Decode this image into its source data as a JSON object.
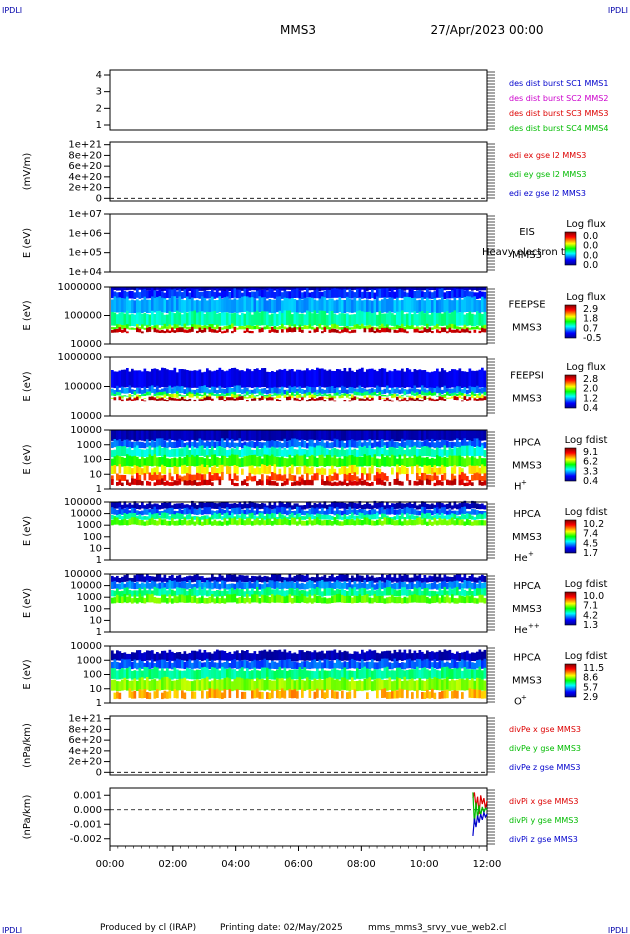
{
  "header": {
    "corner_tl": "IPDLI",
    "corner_tr": "IPDLI",
    "corner_bl": "IPDLI",
    "corner_br": "IPDLI",
    "title": "MMS3",
    "datetime": "27/Apr/2023 00:00"
  },
  "footer": {
    "produced_by": "Produced by cl (IRAP)",
    "printing_date": "Printing date: 02/May/2025",
    "script_name": "mms_mms3_srvy_vue_web2.cl"
  },
  "colors": {
    "mms1": "#0000cc",
    "mms2": "#cc00cc",
    "mms3": "#dd0000",
    "mms4": "#00bb00",
    "x": "#dd0000",
    "y": "#00bb00",
    "z": "#0000cc"
  },
  "chart_data": [
    {
      "id": "des-burst",
      "type": "line",
      "yticks": [
        "1",
        "2",
        "3",
        "4"
      ],
      "ylim": [
        0.7,
        4.3
      ],
      "ylabel": "",
      "legend": [
        {
          "text": "des dist burst SC1 MMS1",
          "color": "#0000cc"
        },
        {
          "text": "des dist burst SC2 MMS2",
          "color": "#cc00cc"
        },
        {
          "text": "des dist burst SC3 MMS3",
          "color": "#dd0000"
        },
        {
          "text": "des dist burst SC4 MMS4",
          "color": "#00bb00"
        }
      ],
      "series": []
    },
    {
      "id": "edi-e",
      "type": "line",
      "ylabel": "(mV/m)",
      "yticks": [
        "0",
        "2e+20",
        "4e+20",
        "6e+20",
        "8e+20",
        "1e+21"
      ],
      "ylim": [
        -0.05,
        1.05
      ],
      "zero_line": true,
      "legend": [
        {
          "text": "edi ex gse l2 MMS3",
          "color": "#dd0000"
        },
        {
          "text": "edi ey gse l2 MMS3",
          "color": "#00bb00"
        },
        {
          "text": "edi ez gse l2 MMS3",
          "color": "#0000cc"
        }
      ],
      "series": []
    },
    {
      "id": "eis",
      "type": "heatmap",
      "ylabel": "E (eV)",
      "yticks": [
        "1e+04",
        "1e+05",
        "1e+06",
        "1e+07"
      ],
      "instrument": [
        "EIS",
        "MMS3"
      ],
      "overlay_label": "Heavy electron to",
      "colorbar": {
        "title": "Log flux",
        "ticks": [
          "0.0",
          "0.0",
          "0.0",
          "0.0"
        ]
      },
      "bands": []
    },
    {
      "id": "feepse",
      "type": "heatmap",
      "ylabel": "E (eV)",
      "yticks": [
        "10000",
        "100000",
        "1000000"
      ],
      "instrument": [
        "FEEPSE",
        "MMS3"
      ],
      "colorbar": {
        "title": "Log flux",
        "ticks": [
          "2.9",
          "1.8",
          "0.7",
          "-0.5"
        ]
      },
      "bands": [
        {
          "from": 0.0,
          "to": 0.06,
          "level": 0.05
        },
        {
          "from": 0.06,
          "to": 0.2,
          "level": 0.18
        },
        {
          "from": 0.2,
          "to": 0.45,
          "level": 0.28
        },
        {
          "from": 0.45,
          "to": 0.68,
          "level": 0.4
        },
        {
          "from": 0.68,
          "to": 0.74,
          "level": 0.55
        },
        {
          "from": 0.74,
          "to": 0.8,
          "level": 0.92
        }
      ]
    },
    {
      "id": "feepsi",
      "type": "heatmap",
      "ylabel": "E (eV)",
      "yticks": [
        "10000",
        "100000",
        "1000000"
      ],
      "instrument": [
        "FEEPSI",
        "MMS3"
      ],
      "colorbar": {
        "title": "Log flux",
        "ticks": [
          "2.8",
          "2.0",
          "1.2",
          "0.4"
        ]
      },
      "bands": [
        {
          "from": 0.0,
          "to": 0.22,
          "level": -1
        },
        {
          "from": 0.22,
          "to": 0.52,
          "level": 0.12
        },
        {
          "from": 0.52,
          "to": 0.62,
          "level": 0.25
        },
        {
          "from": 0.62,
          "to": 0.66,
          "level": 0.45
        },
        {
          "from": 0.66,
          "to": 0.7,
          "level": 0.62
        },
        {
          "from": 0.7,
          "to": 0.74,
          "level": 0.95
        }
      ]
    },
    {
      "id": "hpca-h",
      "type": "heatmap",
      "ylabel": "E (eV)",
      "yticks": [
        "1",
        "10",
        "100",
        "1000",
        "10000"
      ],
      "instrument": [
        "HPCA",
        "MMS3"
      ],
      "species": "H",
      "species_sup": "+",
      "colorbar": {
        "title": "Log fdist",
        "ticks": [
          "9.1",
          "6.2",
          "3.3",
          "0.4"
        ]
      },
      "bands": [
        {
          "from": 0.0,
          "to": 0.18,
          "level": 0.05
        },
        {
          "from": 0.18,
          "to": 0.3,
          "level": 0.22
        },
        {
          "from": 0.3,
          "to": 0.45,
          "level": 0.38
        },
        {
          "from": 0.45,
          "to": 0.62,
          "level": 0.52
        },
        {
          "from": 0.62,
          "to": 0.75,
          "level": 0.66
        },
        {
          "from": 0.75,
          "to": 0.86,
          "level": 0.8
        },
        {
          "from": 0.86,
          "to": 0.94,
          "level": 0.92
        },
        {
          "from": 0.94,
          "to": 1.0,
          "level": -1
        }
      ]
    },
    {
      "id": "hpca-he",
      "type": "heatmap",
      "ylabel": "E (eV)",
      "yticks": [
        "1",
        "10",
        "100",
        "1000",
        "10000",
        "100000"
      ],
      "instrument": [
        "HPCA",
        "MMS3"
      ],
      "species": "He",
      "species_sup": "+",
      "colorbar": {
        "title": "Log fdist",
        "ticks": [
          "10.2",
          "7.4",
          "4.5",
          "1.7"
        ]
      },
      "bands": [
        {
          "from": 0.0,
          "to": 0.02,
          "level": -1
        },
        {
          "from": 0.02,
          "to": 0.12,
          "level": 0.05
        },
        {
          "from": 0.12,
          "to": 0.22,
          "level": 0.22
        },
        {
          "from": 0.22,
          "to": 0.3,
          "level": 0.4
        },
        {
          "from": 0.3,
          "to": 0.4,
          "level": 0.55
        },
        {
          "from": 0.4,
          "to": 1.0,
          "level": -1
        }
      ]
    },
    {
      "id": "hpca-he2",
      "type": "heatmap",
      "ylabel": "E (eV)",
      "yticks": [
        "1",
        "10",
        "100",
        "1000",
        "10000",
        "100000"
      ],
      "instrument": [
        "HPCA",
        "MMS3"
      ],
      "species": "He",
      "species_sup": "++",
      "colorbar": {
        "title": "Log fdist",
        "ticks": [
          "10.0",
          "7.1",
          "4.2",
          "1.3"
        ]
      },
      "bands": [
        {
          "from": 0.0,
          "to": 0.03,
          "level": -1
        },
        {
          "from": 0.03,
          "to": 0.14,
          "level": 0.05
        },
        {
          "from": 0.14,
          "to": 0.26,
          "level": 0.25
        },
        {
          "from": 0.26,
          "to": 0.38,
          "level": 0.42
        },
        {
          "from": 0.38,
          "to": 0.5,
          "level": 0.55
        },
        {
          "from": 0.5,
          "to": 1.0,
          "level": -1
        }
      ]
    },
    {
      "id": "hpca-o",
      "type": "heatmap",
      "ylabel": "E (eV)",
      "yticks": [
        "1",
        "10",
        "100",
        "1000",
        "10000"
      ],
      "instrument": [
        "HPCA",
        "MMS3"
      ],
      "species": "O",
      "species_sup": "+",
      "colorbar": {
        "title": "Log fdist",
        "ticks": [
          "11.5",
          "8.6",
          "5.7",
          "2.9"
        ]
      },
      "bands": [
        {
          "from": 0.0,
          "to": 0.1,
          "level": -1
        },
        {
          "from": 0.1,
          "to": 0.26,
          "level": 0.05
        },
        {
          "from": 0.26,
          "to": 0.4,
          "level": 0.22
        },
        {
          "from": 0.4,
          "to": 0.58,
          "level": 0.42
        },
        {
          "from": 0.58,
          "to": 0.78,
          "level": 0.58
        },
        {
          "from": 0.78,
          "to": 0.92,
          "level": 0.72
        },
        {
          "from": 0.92,
          "to": 1.0,
          "level": -1
        }
      ]
    },
    {
      "id": "divpe",
      "type": "line",
      "ylabel": "(nPa/km)",
      "yticks": [
        "0",
        "2e+20",
        "4e+20",
        "6e+20",
        "8e+20",
        "1e+21"
      ],
      "ylim": [
        -0.05,
        1.05
      ],
      "zero_line": true,
      "legend": [
        {
          "text": "divPe x gse MMS3",
          "color": "#dd0000"
        },
        {
          "text": "divPe y gse MMS3",
          "color": "#00bb00"
        },
        {
          "text": "divPe z gse MMS3",
          "color": "#0000cc"
        }
      ],
      "series": []
    },
    {
      "id": "divpi",
      "type": "line",
      "ylabel": "(nPa/km)",
      "yticks": [
        "-0.002",
        "-0.001",
        "0.000",
        "0.001"
      ],
      "ylim": [
        -0.0025,
        0.0015
      ],
      "zero_line": true,
      "legend": [
        {
          "text": "divPi x gse MMS3",
          "color": "#dd0000"
        },
        {
          "text": "divPi y gse MMS3",
          "color": "#00bb00"
        },
        {
          "text": "divPi z gse MMS3",
          "color": "#0000cc"
        }
      ],
      "series": [
        {
          "name": "divPi x gse MMS3",
          "color": "#dd0000",
          "x": [
            11.55,
            11.6,
            11.65,
            11.7,
            11.75,
            11.8,
            11.85,
            11.9,
            11.95,
            12.0
          ],
          "values": [
            0.0008,
            0.0012,
            0.0002,
            0.0009,
            -0.0003,
            0.001,
            0.0004,
            0.0008,
            0.0001,
            0.0006
          ]
        },
        {
          "name": "divPi y gse MMS3",
          "color": "#00bb00",
          "x": [
            11.55,
            11.6,
            11.65,
            11.7,
            11.75,
            11.8,
            11.85,
            11.9,
            11.95,
            12.0
          ],
          "values": [
            0.0012,
            -0.001,
            0.0005,
            -0.0006,
            0.0003,
            -0.0004,
            0.0002,
            -0.0002,
            0.0001,
            0.0
          ]
        },
        {
          "name": "divPi z gse MMS3",
          "color": "#0000cc",
          "x": [
            11.55,
            11.6,
            11.65,
            11.7,
            11.75,
            11.8,
            11.85,
            11.9,
            11.95,
            12.0
          ],
          "values": [
            -0.0018,
            -0.0006,
            -0.0012,
            -0.0004,
            -0.0009,
            -0.0003,
            -0.0007,
            -0.0002,
            -0.0005,
            -0.0003
          ]
        }
      ]
    }
  ],
  "xaxis": {
    "ticks": [
      "00:00",
      "02:00",
      "04:00",
      "06:00",
      "08:00",
      "10:00",
      "12:00"
    ],
    "xlim": [
      0,
      12
    ]
  }
}
